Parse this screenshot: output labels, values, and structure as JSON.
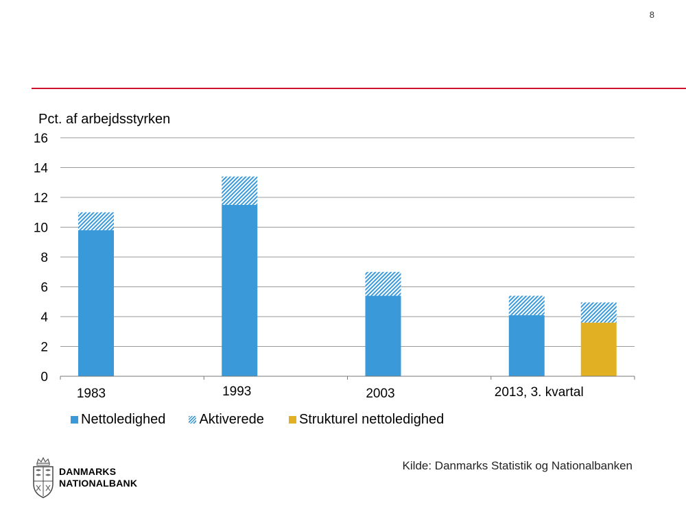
{
  "page_number": "8",
  "source": "Kilde: Danmarks Statistik og Nationalbanken",
  "logo": {
    "line1": "DANMARKS",
    "line2": "NATIONALBANK"
  },
  "colors": {
    "accent_red": "#d0112b",
    "blue": "#3a9ad9",
    "yellow": "#e2b123",
    "grid": "#9a9a9a"
  },
  "chart_data": {
    "type": "bar",
    "stacked": true,
    "ylabel": "Pct. af arbejdsstyrken",
    "ylim": [
      0,
      16
    ],
    "yticks": [
      0,
      2,
      4,
      6,
      8,
      10,
      12,
      14,
      16
    ],
    "grid": true,
    "groups": [
      "1983",
      "1993",
      "2003",
      "2013, 3. kvartal"
    ],
    "legend": [
      "Nettoledighed",
      "Aktiverede",
      "Strukturel nettoledighed"
    ],
    "legend_position": "bottom",
    "bars": [
      {
        "group": 0,
        "slot": 0,
        "nettoledighed": 9.8,
        "aktiverede": 1.2
      },
      {
        "group": 1,
        "slot": 0,
        "nettoledighed": 11.5,
        "aktiverede": 1.9
      },
      {
        "group": 2,
        "slot": 0,
        "nettoledighed": 5.4,
        "aktiverede": 1.6
      },
      {
        "group": 3,
        "slot": 0,
        "nettoledighed": 4.1,
        "aktiverede": 1.3
      },
      {
        "group": 3,
        "slot": 1,
        "strukturel_nettoledighed": 3.6,
        "aktiverede": 1.35
      }
    ]
  }
}
